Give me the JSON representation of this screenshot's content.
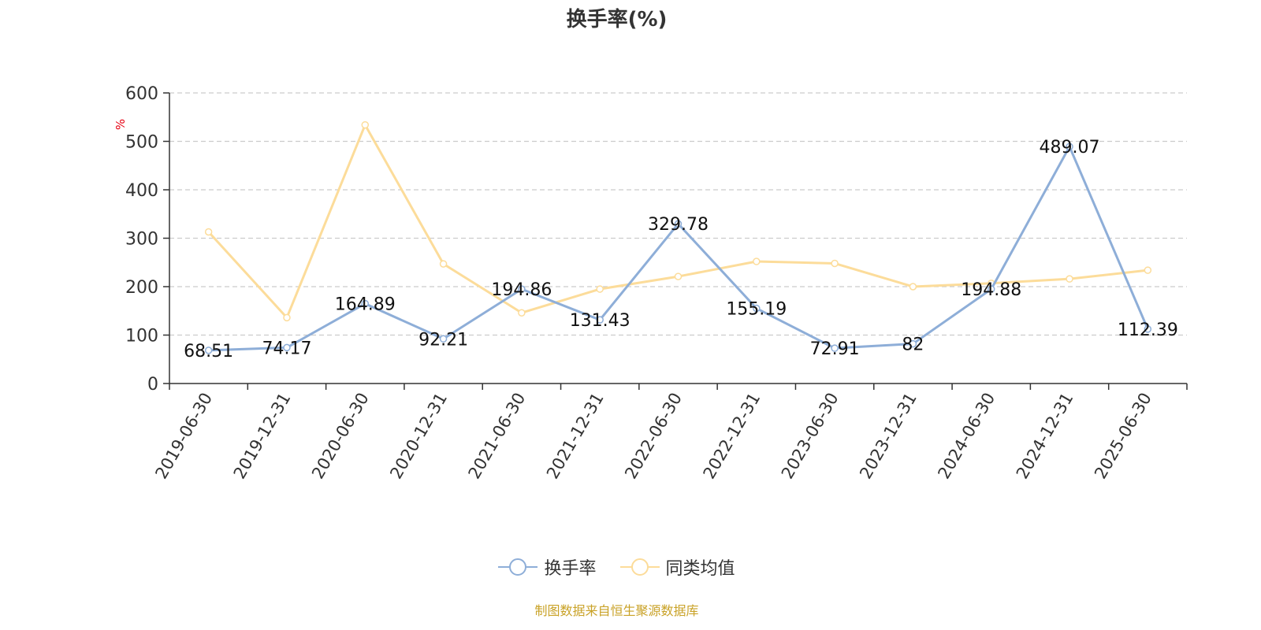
{
  "title": "换手率(%)",
  "source": "制图数据来自恒生聚源数据库",
  "colors": {
    "turnover": "#8eaed8",
    "peer_avg": "#fcdc9a",
    "grid": "#cccccc",
    "axis": "#333333",
    "unit": "#e60012"
  },
  "legend": [
    {
      "label": "换手率",
      "color": "#8eaed8"
    },
    {
      "label": "同类均值",
      "color": "#fcdc9a"
    }
  ],
  "chart_data": {
    "type": "line",
    "title": "换手率(%)",
    "ylabel": "%",
    "ylim": [
      0,
      600
    ],
    "yticks": [
      0,
      100,
      200,
      300,
      400,
      500,
      600
    ],
    "grid": true,
    "legend_position": "bottom",
    "categories": [
      "2019-06-30",
      "2019-12-31",
      "2020-06-30",
      "2020-12-31",
      "2021-06-30",
      "2021-12-31",
      "2022-06-30",
      "2022-12-31",
      "2023-06-30",
      "2023-12-31",
      "2024-06-30",
      "2024-12-31",
      "2025-06-30"
    ],
    "series": [
      {
        "name": "换手率",
        "values": [
          68.51,
          74.17,
          164.89,
          92.21,
          194.86,
          131.43,
          329.78,
          155.19,
          72.91,
          82,
          194.88,
          489.07,
          112.39
        ],
        "labels": [
          "68.51",
          "74.17",
          "164.89",
          "92.21",
          "194.86",
          "131.43",
          "329.78",
          "155.19",
          "72.91",
          "82",
          "194.88",
          "489.07",
          "112.39"
        ]
      },
      {
        "name": "同类均值",
        "values": [
          313,
          136,
          534,
          247,
          146,
          195,
          221,
          252,
          248,
          200,
          207,
          216,
          234
        ]
      }
    ]
  }
}
